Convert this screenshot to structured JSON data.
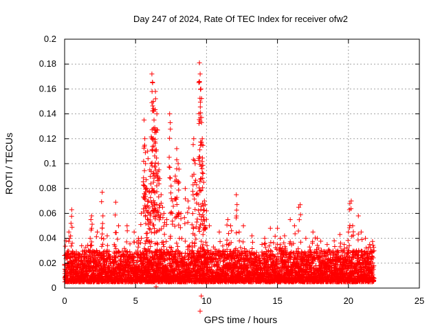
{
  "chart_data": {
    "type": "scatter",
    "title": "Day 247 of 2024, Rate Of TEC Index for receiver ofw2",
    "xlabel": "GPS time / hours",
    "ylabel": "ROTI / TECUs",
    "xlim": [
      0,
      25
    ],
    "ylim": [
      0,
      0.2
    ],
    "xticks": [
      0,
      5,
      10,
      15,
      20,
      25
    ],
    "yticks": [
      0,
      0.02,
      0.04,
      0.06,
      0.08,
      0.1,
      0.12,
      0.14,
      0.16,
      0.18,
      0.2
    ],
    "xtick_labels": [
      "0",
      "5",
      "10",
      "15",
      "20",
      "25"
    ],
    "ytick_labels": [
      "0",
      "0.02",
      "0.04",
      "0.06",
      "0.08",
      "0.1",
      "0.12",
      "0.14",
      "0.16",
      "0.18",
      "0.2"
    ],
    "grid": true,
    "marker": "+",
    "series_color": "#ff0000",
    "data_x_range": [
      0,
      21.8
    ],
    "baseline_range": [
      0.005,
      0.03
    ],
    "points": [
      {
        "x": 0.1,
        "y": 0.038
      },
      {
        "x": 0.3,
        "y": 0.045
      },
      {
        "x": 0.45,
        "y": 0.052
      },
      {
        "x": 0.5,
        "y": 0.063
      },
      {
        "x": 1.2,
        "y": 0.034
      },
      {
        "x": 1.8,
        "y": 0.04
      },
      {
        "x": 1.85,
        "y": 0.055
      },
      {
        "x": 1.9,
        "y": 0.058
      },
      {
        "x": 2.3,
        "y": 0.045
      },
      {
        "x": 2.65,
        "y": 0.077
      },
      {
        "x": 2.7,
        "y": 0.058
      },
      {
        "x": 3.0,
        "y": 0.042
      },
      {
        "x": 3.6,
        "y": 0.069
      },
      {
        "x": 3.8,
        "y": 0.05
      },
      {
        "x": 4.4,
        "y": 0.05
      },
      {
        "x": 4.9,
        "y": 0.045
      },
      {
        "x": 5.2,
        "y": 0.04
      },
      {
        "x": 5.4,
        "y": 0.06
      },
      {
        "x": 5.6,
        "y": 0.135
      },
      {
        "x": 5.65,
        "y": 0.12
      },
      {
        "x": 5.7,
        "y": 0.1
      },
      {
        "x": 5.75,
        "y": 0.087
      },
      {
        "x": 5.8,
        "y": 0.08
      },
      {
        "x": 5.85,
        "y": 0.11
      },
      {
        "x": 5.9,
        "y": 0.07
      },
      {
        "x": 6.0,
        "y": 0.095
      },
      {
        "x": 6.05,
        "y": 0.06
      },
      {
        "x": 6.1,
        "y": 0.1
      },
      {
        "x": 6.15,
        "y": 0.172
      },
      {
        "x": 6.2,
        "y": 0.165
      },
      {
        "x": 6.25,
        "y": 0.15
      },
      {
        "x": 6.3,
        "y": 0.135
      },
      {
        "x": 6.35,
        "y": 0.125
      },
      {
        "x": 6.4,
        "y": 0.158
      },
      {
        "x": 6.45,
        "y": 0.11
      },
      {
        "x": 6.5,
        "y": 0.14
      },
      {
        "x": 6.55,
        "y": 0.127
      },
      {
        "x": 6.6,
        "y": 0.1
      },
      {
        "x": 6.65,
        "y": 0.095
      },
      {
        "x": 6.7,
        "y": 0.088
      },
      {
        "x": 6.8,
        "y": 0.075
      },
      {
        "x": 6.9,
        "y": 0.065
      },
      {
        "x": 7.0,
        "y": 0.06
      },
      {
        "x": 7.2,
        "y": 0.055
      },
      {
        "x": 7.4,
        "y": 0.14
      },
      {
        "x": 7.5,
        "y": 0.082
      },
      {
        "x": 7.6,
        "y": 0.07
      },
      {
        "x": 7.8,
        "y": 0.09
      },
      {
        "x": 7.9,
        "y": 0.112
      },
      {
        "x": 8.0,
        "y": 0.1
      },
      {
        "x": 8.05,
        "y": 0.085
      },
      {
        "x": 8.2,
        "y": 0.06
      },
      {
        "x": 8.5,
        "y": 0.08
      },
      {
        "x": 8.7,
        "y": 0.07
      },
      {
        "x": 9.0,
        "y": 0.09
      },
      {
        "x": 9.1,
        "y": 0.12
      },
      {
        "x": 9.2,
        "y": 0.1
      },
      {
        "x": 9.3,
        "y": 0.083
      },
      {
        "x": 9.4,
        "y": 0.075
      },
      {
        "x": 9.5,
        "y": 0.181
      },
      {
        "x": 9.55,
        "y": 0.172
      },
      {
        "x": 9.6,
        "y": 0.16
      },
      {
        "x": 9.65,
        "y": 0.133
      },
      {
        "x": 9.7,
        "y": 0.12
      },
      {
        "x": 9.75,
        "y": 0.092
      },
      {
        "x": 9.8,
        "y": 0.085
      },
      {
        "x": 9.85,
        "y": 0.07
      },
      {
        "x": 9.9,
        "y": 0.067
      },
      {
        "x": 10.0,
        "y": 0.062
      },
      {
        "x": 10.2,
        "y": 0.05
      },
      {
        "x": 10.9,
        "y": 0.045
      },
      {
        "x": 11.5,
        "y": 0.055
      },
      {
        "x": 11.7,
        "y": 0.05
      },
      {
        "x": 12.1,
        "y": 0.075
      },
      {
        "x": 12.3,
        "y": 0.045
      },
      {
        "x": 12.6,
        "y": 0.05
      },
      {
        "x": 13.2,
        "y": 0.042
      },
      {
        "x": 14.1,
        "y": 0.04
      },
      {
        "x": 14.5,
        "y": 0.048
      },
      {
        "x": 15.0,
        "y": 0.048
      },
      {
        "x": 15.2,
        "y": 0.04
      },
      {
        "x": 15.5,
        "y": 0.042
      },
      {
        "x": 15.9,
        "y": 0.055
      },
      {
        "x": 16.2,
        "y": 0.05
      },
      {
        "x": 16.5,
        "y": 0.065
      },
      {
        "x": 16.6,
        "y": 0.067
      },
      {
        "x": 17.0,
        "y": 0.04
      },
      {
        "x": 17.5,
        "y": 0.045
      },
      {
        "x": 17.8,
        "y": 0.04
      },
      {
        "x": 18.5,
        "y": 0.035
      },
      {
        "x": 19.0,
        "y": 0.038
      },
      {
        "x": 19.4,
        "y": 0.043
      },
      {
        "x": 19.7,
        "y": 0.035
      },
      {
        "x": 20.0,
        "y": 0.045
      },
      {
        "x": 20.1,
        "y": 0.068
      },
      {
        "x": 20.2,
        "y": 0.07
      },
      {
        "x": 20.3,
        "y": 0.05
      },
      {
        "x": 20.7,
        "y": 0.058
      },
      {
        "x": 20.9,
        "y": 0.045
      },
      {
        "x": 21.2,
        "y": 0.04
      },
      {
        "x": 21.5,
        "y": 0.035
      }
    ]
  }
}
